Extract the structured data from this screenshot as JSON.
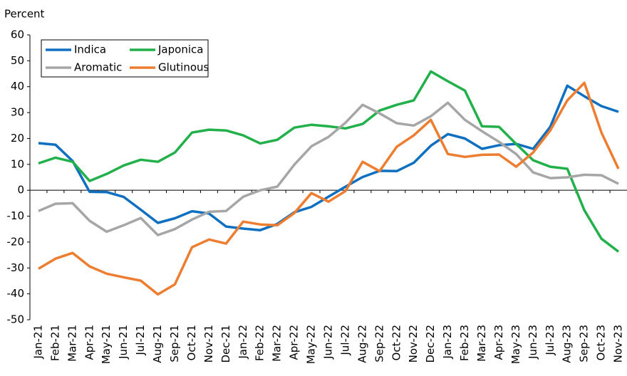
{
  "chart_data": {
    "type": "line",
    "y_label": "Percent",
    "categories": [
      "Jan-21",
      "Feb-21",
      "Mar-21",
      "Apr-21",
      "May-21",
      "Jun-21",
      "Jul-21",
      "Aug-21",
      "Sep-21",
      "Oct-21",
      "Nov-21",
      "Dec-21",
      "Jan-22",
      "Feb-22",
      "Mar-22",
      "Apr-22",
      "May-22",
      "Jun-22",
      "Jul-22",
      "Aug-22",
      "Sep-22",
      "Oct-22",
      "Nov-22",
      "Dec-22",
      "Jan-23",
      "Feb-23",
      "Mar-23",
      "Apr-23",
      "May-23",
      "Jun-23",
      "Jul-23",
      "Aug-23",
      "Sep-23",
      "Oct-23",
      "Nov-23"
    ],
    "series": [
      {
        "name": "Indica",
        "color": "#0f6fc0",
        "values": [
          18.2,
          17.6,
          11.3,
          -0.6,
          -0.7,
          -2.6,
          -7.5,
          -12.6,
          -10.8,
          -8.1,
          -9,
          -14,
          -14.8,
          -15.4,
          -13,
          -8.5,
          -6.4,
          -2.5,
          1.4,
          5.1,
          7.5,
          7.4,
          10.6,
          17.2,
          21.7,
          20,
          16,
          17.4,
          17.9,
          16,
          24.5,
          40.4,
          36.3,
          32.5,
          30.3
        ]
      },
      {
        "name": "Japonica",
        "color": "#22b04b",
        "values": [
          10.4,
          12.6,
          11,
          3.6,
          6.3,
          9.6,
          11.8,
          11,
          14.6,
          22.3,
          23.4,
          23.1,
          21.2,
          18.1,
          19.5,
          24.2,
          25.3,
          24.7,
          23.9,
          25.6,
          30.8,
          33,
          34.7,
          45.9,
          42.1,
          38.5,
          24.7,
          24.5,
          17.9,
          11.6,
          9.1,
          8.3,
          -7.7,
          -18.7,
          -23.7
        ]
      },
      {
        "name": "Aromatic",
        "color": "#a6a6a6",
        "values": [
          -8,
          -5.2,
          -5,
          -11.8,
          -16,
          -13.5,
          -10.7,
          -17.3,
          -15,
          -11.3,
          -8.3,
          -8,
          -2.5,
          0,
          1.4,
          9.9,
          17,
          20.6,
          26.1,
          33,
          29.7,
          25.9,
          25,
          28.6,
          33.8,
          27.2,
          22.8,
          18.7,
          14,
          6.9,
          4.7,
          5,
          6,
          5.8,
          2.5
        ]
      },
      {
        "name": "Glutinous",
        "color": "#ed7d31",
        "values": [
          -30.3,
          -26.4,
          -24.2,
          -29.4,
          -32.2,
          -33.6,
          -34.9,
          -40.2,
          -36.3,
          -22,
          -19,
          -20.6,
          -12.1,
          -13.2,
          -13.5,
          -8.8,
          -1.1,
          -4.4,
          -0.3,
          11,
          7.4,
          16.8,
          21.2,
          27.2,
          14,
          12.9,
          13.7,
          13.8,
          9.1,
          14.6,
          23.1,
          34.7,
          41.5,
          22.3,
          8.3
        ]
      }
    ],
    "ylim": [
      -50,
      60
    ],
    "yticks": [
      -50,
      -40,
      -30,
      -20,
      -10,
      0,
      10,
      20,
      30,
      40,
      50,
      60
    ],
    "grid": false,
    "legend": "upper left"
  }
}
